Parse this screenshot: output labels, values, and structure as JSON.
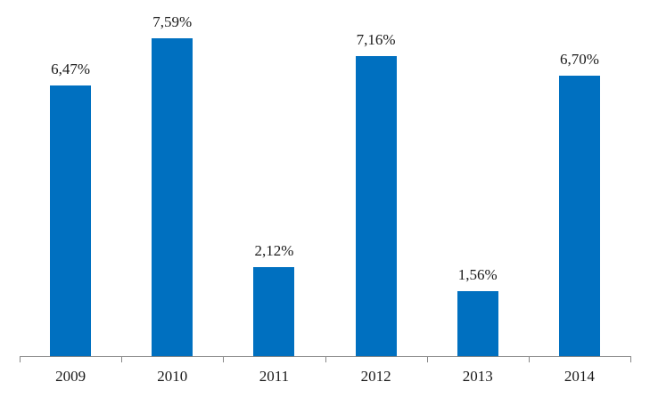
{
  "chart_data": {
    "type": "bar",
    "title": "",
    "xlabel": "",
    "ylabel": "",
    "categories": [
      "2009",
      "2010",
      "2011",
      "2012",
      "2013",
      "2014"
    ],
    "values": [
      6.47,
      7.59,
      2.12,
      7.16,
      1.56,
      6.7
    ],
    "data_labels": [
      "6,47%",
      "7,59%",
      "2,12%",
      "7,16%",
      "1,56%",
      "6,70%"
    ],
    "ylim": [
      0,
      8.0
    ],
    "grid": false,
    "legend": "none",
    "bar_color": "#0070C0"
  }
}
